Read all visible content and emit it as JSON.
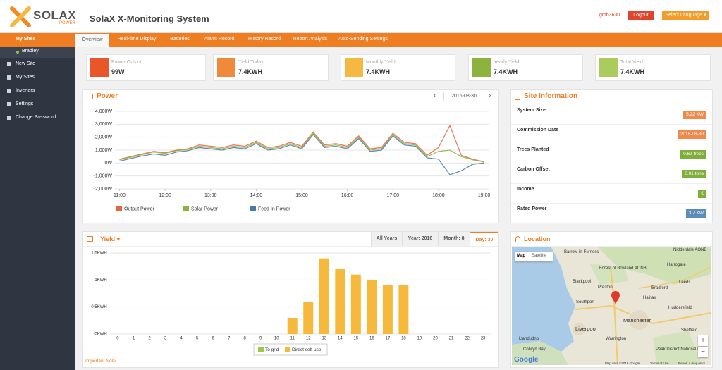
{
  "header": {
    "logo": "SOLAX",
    "logo_sub": "POWER",
    "title": "SolaX X-Monitoring System",
    "user": "gmb3630",
    "logout": "Logout",
    "language": "Select Language ▾"
  },
  "sidebar": {
    "site_group": "My Sites",
    "site": "Bradley",
    "items": [
      "New Site",
      "My Sites",
      "Inverters",
      "Settings",
      "Change Password"
    ]
  },
  "tabs": [
    "Overview",
    "Real-time Display",
    "Batteries",
    "Alarm Record",
    "History Record",
    "Report Analysis",
    "Auto-Sending Settings"
  ],
  "cards": [
    {
      "label": "Power Output",
      "value": "99W",
      "color": "#e8562a"
    },
    {
      "label": "Yield Today",
      "value": "7.4KWH",
      "color": "#f08a3a"
    },
    {
      "label": "Monthly Yield",
      "value": "7.4KWH",
      "color": "#f5b843"
    },
    {
      "label": "Yearly Yield",
      "value": "7.4KWH",
      "color": "#8db33f"
    },
    {
      "label": "Total Yield",
      "value": "7.4KWH",
      "color": "#a9cc5c"
    }
  ],
  "power_panel": {
    "date": "2016-08-30",
    "prev": "‹",
    "next": "›"
  },
  "chart_data": [
    {
      "type": "line",
      "title": "Power",
      "x": [
        11,
        11.25,
        11.5,
        11.75,
        12,
        12.25,
        12.5,
        12.75,
        13,
        13.25,
        13.5,
        13.75,
        14,
        14.25,
        14.5,
        14.75,
        15,
        15.25,
        15.5,
        15.75,
        16,
        16.25,
        16.5,
        16.75,
        17,
        17.25,
        17.5,
        17.75,
        18,
        18.25,
        18.5,
        18.75,
        19
      ],
      "series": [
        {
          "name": "Output Power",
          "color": "#e8643a",
          "values": [
            300,
            500,
            700,
            900,
            800,
            1000,
            1100,
            1400,
            1300,
            1200,
            1400,
            1300,
            1700,
            1200,
            1300,
            1600,
            1300,
            2400,
            1400,
            1500,
            1300,
            2100,
            1100,
            1200,
            2300,
            1600,
            1500,
            600,
            1200,
            2900,
            600,
            300,
            100
          ]
        },
        {
          "name": "Solar Power",
          "color": "#8db33f",
          "values": [
            250,
            450,
            650,
            850,
            750,
            950,
            1050,
            1300,
            1200,
            1100,
            1300,
            1200,
            1600,
            1100,
            1200,
            1500,
            1200,
            2300,
            1300,
            1400,
            1200,
            2000,
            1000,
            1100,
            2200,
            1500,
            1400,
            500,
            900,
            1000,
            500,
            250,
            80
          ]
        },
        {
          "name": "Feed In Power",
          "color": "#4a79a5",
          "values": [
            150,
            350,
            550,
            700,
            600,
            850,
            950,
            1200,
            1100,
            1000,
            1200,
            1100,
            1500,
            1000,
            1100,
            1400,
            1100,
            2200,
            1200,
            1300,
            1100,
            1900,
            900,
            1000,
            2100,
            1400,
            1300,
            400,
            300,
            -900,
            -600,
            -100,
            0
          ]
        }
      ],
      "xlim": [
        10.9,
        19.1
      ],
      "xticks": [
        {
          "value": 11,
          "label": "11:00"
        },
        {
          "value": 12,
          "label": "12:00"
        },
        {
          "value": 13,
          "label": "13:00"
        },
        {
          "value": 14,
          "label": "14:00"
        },
        {
          "value": 15,
          "label": "15:00"
        },
        {
          "value": 16,
          "label": "16:00"
        },
        {
          "value": 17,
          "label": "17:00"
        },
        {
          "value": 18,
          "label": "18:00"
        },
        {
          "value": 19,
          "label": "19:00"
        }
      ],
      "ylim": [
        -2000,
        4000
      ],
      "yticks": [
        {
          "value": 4000,
          "label": "4,000W"
        },
        {
          "value": 3000,
          "label": "3,000W"
        },
        {
          "value": 2000,
          "label": "2,000W"
        },
        {
          "value": 1000,
          "label": "1,000W"
        },
        {
          "value": 0,
          "label": "0W"
        },
        {
          "value": -1000,
          "label": "-1,000W"
        },
        {
          "value": -2000,
          "label": "-2,000W"
        }
      ],
      "grid": true
    },
    {
      "type": "stacked-bar",
      "title": "Yield ▾",
      "categories": [
        "0",
        "1",
        "2",
        "3",
        "4",
        "5",
        "6",
        "7",
        "8",
        "9",
        "10",
        "11",
        "12",
        "13",
        "14",
        "15",
        "16",
        "17",
        "18",
        "19",
        "20",
        "21",
        "22",
        "23"
      ],
      "series": [
        {
          "name": "To grid",
          "color": "#9bc94a",
          "values": [
            0,
            0,
            0,
            0,
            0,
            0,
            0,
            0,
            0,
            0,
            0,
            0,
            0,
            0,
            0,
            0,
            0,
            0,
            0,
            0,
            0,
            0,
            0,
            0
          ]
        },
        {
          "name": "Direct self-use",
          "color": "#f6b93b",
          "values": [
            0,
            0,
            0,
            0,
            0,
            0,
            0,
            0,
            0,
            0,
            0,
            0.3,
            0.6,
            1.4,
            1.2,
            1.1,
            1.0,
            0.9,
            0.9,
            0,
            0,
            0,
            0,
            0
          ]
        }
      ],
      "ylim": [
        0,
        1.5
      ],
      "yticks": [
        {
          "value": 0,
          "label": "0KWH"
        },
        {
          "value": 0.5,
          "label": "0.5KWH"
        },
        {
          "value": 1,
          "label": "1KWH"
        },
        {
          "value": 1.5,
          "label": "1.5KWH"
        }
      ],
      "grid": true
    }
  ],
  "yield_filters": [
    "All Years",
    "Year: 2016",
    "Month: 8",
    "Day: 30"
  ],
  "important_note": "Important Note",
  "site_info": {
    "title": "Site Information",
    "rows": [
      {
        "label": "System Size",
        "value": "5.22 KW",
        "color": "#f08a4b"
      },
      {
        "label": "Commission Date",
        "value": "2016-08-30",
        "color": "#f08a4b"
      },
      {
        "label": "Trees Planted",
        "value": "0.62 trees",
        "color": "#7fae3a"
      },
      {
        "label": "Carbon Offset",
        "value": "0.01 tons",
        "color": "#7fae3a"
      },
      {
        "label": "Income",
        "value": "€",
        "color": "#7fae3a"
      },
      {
        "label": "Rated Power",
        "value": "3.7 KW",
        "color": "#5b8db8"
      }
    ]
  },
  "location": {
    "title": "Location",
    "map_buttons": [
      "Map",
      "Satellite"
    ],
    "places": [
      "Barrow-in-Furness",
      "Nidderdale AONB",
      "Forest of Bowland AONB",
      "Harrogate",
      "Blackpool",
      "Preston",
      "Leeds",
      "Bradford",
      "Southport",
      "Halifax",
      "Huddersfield",
      "Liverpool",
      "Manchester",
      "Sheffield",
      "Warrington",
      "Llandudno",
      "Colwyn Bay",
      "Peak District National Park"
    ],
    "zoom": [
      "+",
      "−"
    ],
    "google": "Google",
    "attribution": "Map data ©2016 Google",
    "links": [
      "Terms of Use",
      "Report a map error"
    ]
  }
}
